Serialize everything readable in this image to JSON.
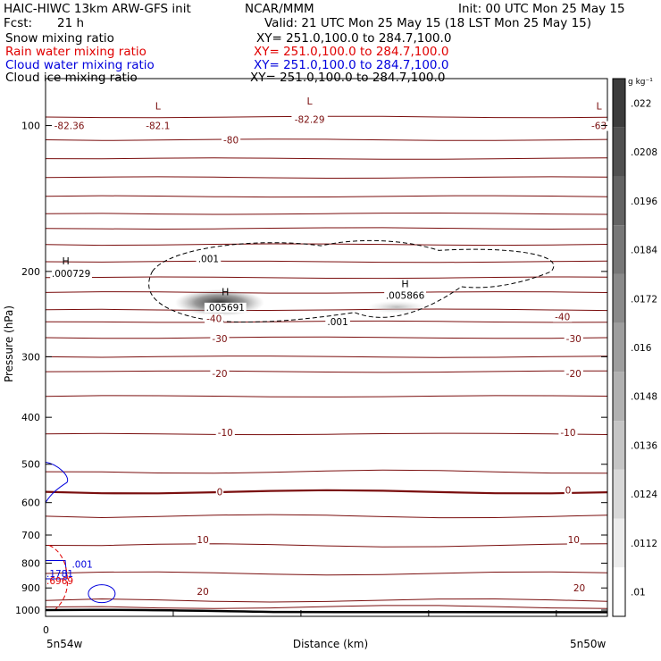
{
  "header": {
    "model": "HAIC-HIWC 13km ARW-GFS init",
    "org": "NCAR/MMM",
    "init": "Init: 00 UTC Mon 25 May 15",
    "fcst_label": "Fcst:",
    "fcst_value": "21 h",
    "valid": "Valid: 21 UTC Mon 25 May 15 (18 LST Mon 25 May 15)"
  },
  "fields": [
    {
      "label": "Snow mixing ratio",
      "xy": "XY= 251.0,100.0 to 284.7,100.0",
      "color": "#000000"
    },
    {
      "label": "Rain water mixing ratio",
      "xy": "XY= 251.0,100.0 to 284.7,100.0",
      "color": "#e00000"
    },
    {
      "label": "Cloud water mixing ratio",
      "xy": "XY= 251.0,100.0 to 284.7,100.0",
      "color": "#0000dd"
    },
    {
      "label": "Cloud ice mixing ratio",
      "xy": "XY= 251.0,100.0 to 284.7,100.0",
      "color": "#000000"
    }
  ],
  "colors": {
    "temperature": "#7a0e0e",
    "temperature_zero": "#7a0e0e",
    "snow": "#000000",
    "rain": "#e00000",
    "cloud_water": "#0000dd",
    "terrain": "#000000"
  },
  "chart_data": {
    "type": "contour",
    "ylabel": "Pressure (hPa)",
    "xlabel": "Distance (km)",
    "x_left_label": "5n54w",
    "x_right_label": "5n50w",
    "x_tick_zero": "0",
    "y_scale": "log",
    "ylim": [
      1030,
      80
    ],
    "y_ticks": [
      100,
      200,
      300,
      400,
      500,
      600,
      700,
      800,
      900,
      1000
    ],
    "colorbar": {
      "unit": "g kg⁻¹",
      "labels": [
        ".022",
        ".0208",
        ".0196",
        ".0184",
        ".0172",
        ".016",
        ".0148",
        ".0136",
        ".0124",
        ".0112",
        ".01"
      ]
    },
    "temperature_labels": [
      {
        "text": "-82.36",
        "p": 100,
        "x": 0.02
      },
      {
        "text": "-82.1",
        "p": 100,
        "x": 0.2
      },
      {
        "text": "-80",
        "p": 107,
        "x": 0.33
      },
      {
        "text": "-82.29",
        "p": 97,
        "x": 0.47
      },
      {
        "text": "-63",
        "p": 100,
        "x": 0.985
      },
      {
        "text": "-40",
        "p": 250,
        "x": 0.3
      },
      {
        "text": "-40",
        "p": 248,
        "x": 0.92
      },
      {
        "text": "-30",
        "p": 275,
        "x": 0.31
      },
      {
        "text": "-30",
        "p": 275,
        "x": 0.94
      },
      {
        "text": "-20",
        "p": 325,
        "x": 0.31
      },
      {
        "text": "-20",
        "p": 325,
        "x": 0.94
      },
      {
        "text": "-10",
        "p": 430,
        "x": 0.32
      },
      {
        "text": "-10",
        "p": 430,
        "x": 0.93
      },
      {
        "text": "0",
        "p": 570,
        "x": 0.31
      },
      {
        "text": "0",
        "p": 565,
        "x": 0.93
      },
      {
        "text": "10",
        "p": 715,
        "x": 0.28
      },
      {
        "text": "10",
        "p": 715,
        "x": 0.94
      },
      {
        "text": "20",
        "p": 915,
        "x": 0.28
      },
      {
        "text": "20",
        "p": 900,
        "x": 0.95
      }
    ],
    "extrema_labels": [
      {
        "kind": "L",
        "text": "L",
        "p": 91,
        "x": 0.2,
        "color": "temperature"
      },
      {
        "kind": "L",
        "text": "L",
        "p": 89,
        "x": 0.47,
        "color": "temperature"
      },
      {
        "kind": "L",
        "text": "L",
        "p": 91,
        "x": 0.985,
        "color": "temperature"
      },
      {
        "kind": "H",
        "text": "H",
        "p": 190,
        "x": 0.02,
        "color": "snow"
      },
      {
        "kind": "H",
        "text": "H",
        "p": 220,
        "x": 0.32,
        "color": "snow"
      },
      {
        "kind": "H",
        "text": "H",
        "p": 212,
        "x": 0.64,
        "color": "snow"
      }
    ],
    "value_labels": [
      {
        "text": ".000729",
        "p": 202,
        "x": 0.02,
        "color": "snow"
      },
      {
        "text": ".005691",
        "p": 237,
        "x": 0.32,
        "color": "snow"
      },
      {
        "text": ".005866",
        "p": 224,
        "x": 0.64,
        "color": "snow"
      },
      {
        "text": ".001",
        "p": 188,
        "x": 0.29,
        "color": "snow"
      },
      {
        "text": ".001",
        "p": 254,
        "x": 0.52,
        "color": "snow"
      },
      {
        "text": ".001",
        "p": 803,
        "x": 0.04,
        "color": "cloud_water"
      },
      {
        "text": ".1781",
        "p": 840,
        "x": 0.0,
        "color": "cloud_water"
      },
      {
        "text": ".6969",
        "p": 870,
        "x": 0.0,
        "color": "rain"
      }
    ]
  }
}
